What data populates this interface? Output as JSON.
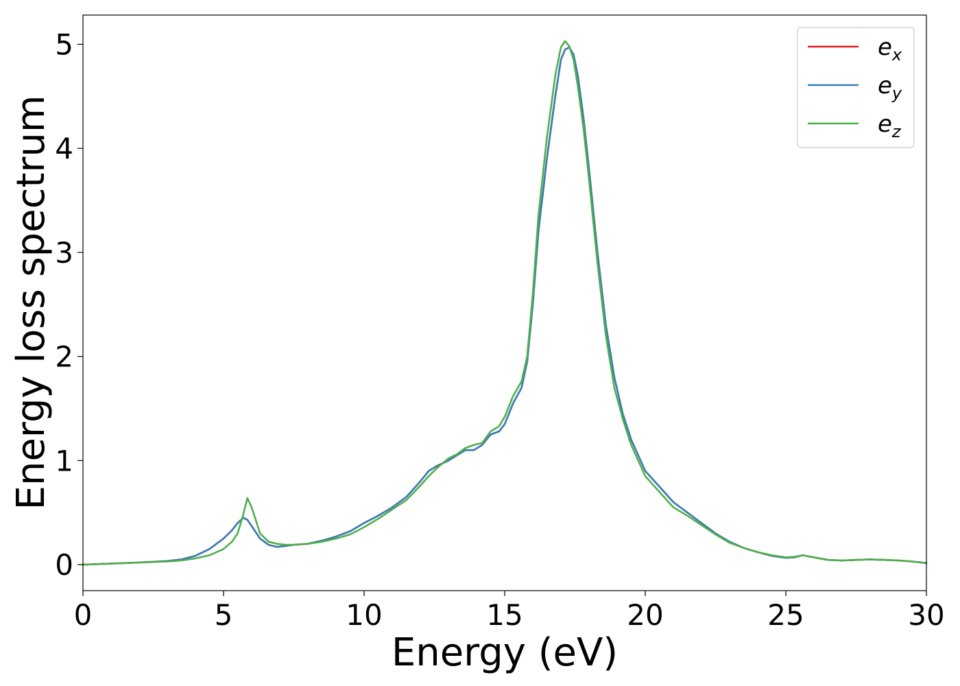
{
  "chart_data": {
    "type": "line",
    "title": "",
    "xlabel": "Energy (eV)",
    "ylabel": "Energy loss spectrum",
    "xlim": [
      0,
      30
    ],
    "ylim": [
      -0.25,
      5.28
    ],
    "xticks": [
      0,
      5,
      10,
      15,
      20,
      25,
      30
    ],
    "yticks": [
      0,
      1,
      2,
      3,
      4,
      5
    ],
    "grid": false,
    "legend_position": "top-right",
    "series": [
      {
        "name": "e_x",
        "label_base": "e",
        "label_sub": "x",
        "color": "#e41a1c",
        "x": [
          0,
          1,
          2,
          3,
          3.5,
          4,
          4.5,
          5,
          5.3,
          5.5,
          5.7,
          5.85,
          6.0,
          6.3,
          6.6,
          6.9,
          7.2,
          7.5,
          8,
          8.5,
          9,
          9.5,
          10,
          10.5,
          11,
          11.5,
          12,
          12.3,
          12.6,
          13,
          13.3,
          13.6,
          13.9,
          14.2,
          14.5,
          14.8,
          15.0,
          15.3,
          15.6,
          15.8,
          16.0,
          16.2,
          16.5,
          16.8,
          17.0,
          17.15,
          17.3,
          17.45,
          17.6,
          17.8,
          18.0,
          18.3,
          18.6,
          18.9,
          19.2,
          19.5,
          20.0,
          20.5,
          21,
          21.5,
          22,
          22.5,
          23,
          23.5,
          24,
          24.5,
          25,
          25.3,
          25.6,
          26,
          26.5,
          27,
          27.5,
          28,
          28.5,
          29,
          29.5,
          30
        ],
        "y": [
          0,
          0.01,
          0.02,
          0.035,
          0.05,
          0.085,
          0.15,
          0.25,
          0.33,
          0.4,
          0.45,
          0.43,
          0.37,
          0.25,
          0.19,
          0.17,
          0.18,
          0.19,
          0.2,
          0.23,
          0.27,
          0.32,
          0.4,
          0.47,
          0.55,
          0.65,
          0.8,
          0.9,
          0.95,
          1.0,
          1.05,
          1.1,
          1.1,
          1.15,
          1.25,
          1.28,
          1.35,
          1.55,
          1.7,
          1.95,
          2.5,
          3.2,
          3.9,
          4.5,
          4.85,
          4.95,
          4.97,
          4.9,
          4.7,
          4.3,
          3.8,
          3.0,
          2.3,
          1.8,
          1.45,
          1.2,
          0.9,
          0.75,
          0.6,
          0.5,
          0.4,
          0.3,
          0.22,
          0.16,
          0.12,
          0.085,
          0.065,
          0.07,
          0.09,
          0.07,
          0.045,
          0.04,
          0.045,
          0.05,
          0.045,
          0.04,
          0.03,
          0.015
        ]
      },
      {
        "name": "e_y",
        "label_base": "e",
        "label_sub": "y",
        "color": "#377eb8",
        "x": [
          0,
          1,
          2,
          3,
          3.5,
          4,
          4.5,
          5,
          5.3,
          5.5,
          5.7,
          5.85,
          6.0,
          6.3,
          6.6,
          6.9,
          7.2,
          7.5,
          8,
          8.5,
          9,
          9.5,
          10,
          10.5,
          11,
          11.5,
          12,
          12.3,
          12.6,
          13,
          13.3,
          13.6,
          13.9,
          14.2,
          14.5,
          14.8,
          15.0,
          15.3,
          15.6,
          15.8,
          16.0,
          16.2,
          16.5,
          16.8,
          17.0,
          17.15,
          17.3,
          17.45,
          17.6,
          17.8,
          18.0,
          18.3,
          18.6,
          18.9,
          19.2,
          19.5,
          20.0,
          20.5,
          21,
          21.5,
          22,
          22.5,
          23,
          23.5,
          24,
          24.5,
          25,
          25.3,
          25.6,
          26,
          26.5,
          27,
          27.5,
          28,
          28.5,
          29,
          29.5,
          30
        ],
        "y": [
          0,
          0.01,
          0.02,
          0.035,
          0.05,
          0.085,
          0.15,
          0.25,
          0.33,
          0.4,
          0.45,
          0.43,
          0.37,
          0.25,
          0.19,
          0.17,
          0.18,
          0.19,
          0.2,
          0.23,
          0.27,
          0.32,
          0.4,
          0.47,
          0.55,
          0.65,
          0.8,
          0.9,
          0.95,
          1.0,
          1.05,
          1.1,
          1.1,
          1.15,
          1.25,
          1.28,
          1.35,
          1.55,
          1.7,
          1.95,
          2.5,
          3.2,
          3.9,
          4.5,
          4.85,
          4.95,
          4.97,
          4.9,
          4.7,
          4.3,
          3.8,
          3.0,
          2.3,
          1.8,
          1.45,
          1.2,
          0.9,
          0.75,
          0.6,
          0.5,
          0.4,
          0.3,
          0.22,
          0.16,
          0.12,
          0.085,
          0.065,
          0.07,
          0.09,
          0.07,
          0.045,
          0.04,
          0.045,
          0.05,
          0.045,
          0.04,
          0.03,
          0.015
        ]
      },
      {
        "name": "e_z",
        "label_base": "e",
        "label_sub": "z",
        "color": "#4daf4a",
        "x": [
          0,
          1,
          2,
          3,
          3.5,
          4,
          4.5,
          5,
          5.3,
          5.5,
          5.7,
          5.85,
          6.0,
          6.3,
          6.6,
          6.9,
          7.2,
          7.5,
          8,
          8.5,
          9,
          9.5,
          10,
          10.5,
          11,
          11.5,
          12,
          12.3,
          12.6,
          13,
          13.3,
          13.6,
          13.9,
          14.2,
          14.5,
          14.8,
          15.0,
          15.3,
          15.6,
          15.8,
          16.0,
          16.2,
          16.5,
          16.8,
          17.0,
          17.15,
          17.3,
          17.45,
          17.6,
          17.8,
          18.0,
          18.3,
          18.6,
          18.9,
          19.2,
          19.5,
          20.0,
          20.5,
          21,
          21.5,
          22,
          22.5,
          23,
          23.5,
          24,
          24.5,
          25,
          25.3,
          25.6,
          26,
          26.5,
          27,
          27.5,
          28,
          28.5,
          29,
          29.5,
          30
        ],
        "y": [
          0,
          0.01,
          0.02,
          0.03,
          0.04,
          0.06,
          0.09,
          0.15,
          0.22,
          0.3,
          0.48,
          0.64,
          0.55,
          0.3,
          0.22,
          0.2,
          0.19,
          0.19,
          0.2,
          0.22,
          0.25,
          0.29,
          0.36,
          0.44,
          0.53,
          0.62,
          0.76,
          0.85,
          0.93,
          1.02,
          1.06,
          1.12,
          1.15,
          1.17,
          1.28,
          1.33,
          1.42,
          1.62,
          1.76,
          2.0,
          2.6,
          3.35,
          4.1,
          4.7,
          4.97,
          5.03,
          4.98,
          4.85,
          4.6,
          4.2,
          3.7,
          2.9,
          2.2,
          1.7,
          1.4,
          1.15,
          0.85,
          0.7,
          0.55,
          0.47,
          0.38,
          0.29,
          0.21,
          0.16,
          0.12,
          0.09,
          0.07,
          0.075,
          0.09,
          0.07,
          0.045,
          0.04,
          0.045,
          0.05,
          0.045,
          0.04,
          0.03,
          0.015
        ]
      }
    ]
  }
}
